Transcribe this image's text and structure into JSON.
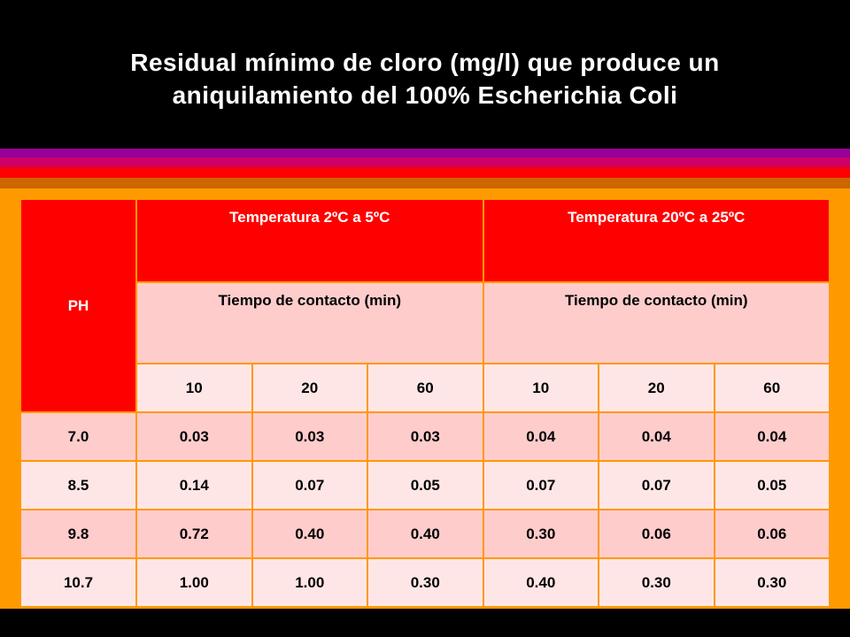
{
  "title": [
    "Residual mínimo de cloro (mg/l) que produce un",
    "aniquilamiento del 100% Escherichia Coli"
  ],
  "table": {
    "header": {
      "ph": "PH",
      "groups": [
        "Temperatura 2ºC a 5ºC",
        "Temperatura 20ºC a 25ºC"
      ],
      "subgroups": [
        "Tiempo de contacto (min)",
        "Tiempo de contacto (min)"
      ],
      "times": [
        "10",
        "20",
        "60",
        "10",
        "20",
        "60"
      ]
    },
    "rows": [
      [
        "7.0",
        "0.03",
        "0.03",
        "0.03",
        "0.04",
        "0.04",
        "0.04"
      ],
      [
        "8.5",
        "0.14",
        "0.07",
        "0.05",
        "0.07",
        "0.07",
        "0.05"
      ],
      [
        "9.8",
        "0.72",
        "0.40",
        "0.40",
        "0.30",
        "0.06",
        "0.06"
      ],
      [
        "10.7",
        "1.00",
        "1.00",
        "0.30",
        "0.40",
        "0.30",
        "0.30"
      ]
    ]
  }
}
